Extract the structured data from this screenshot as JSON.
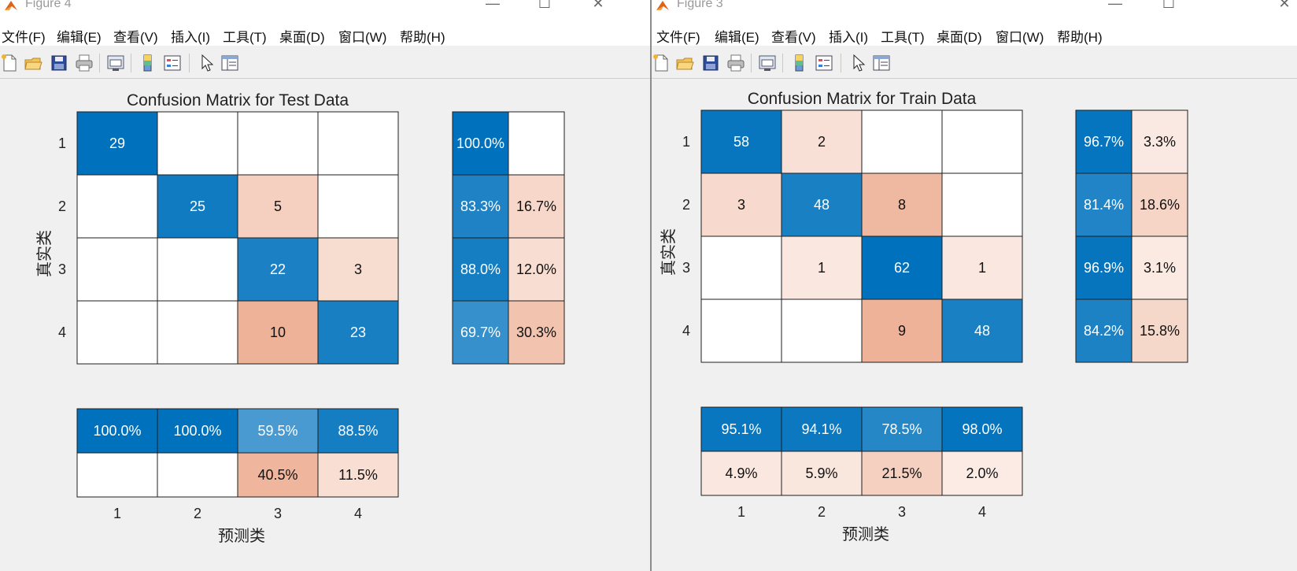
{
  "windows": [
    {
      "id": "win4",
      "title": "Figure 4",
      "menu": [
        "文件(F)",
        "编辑(E)",
        "查看(V)",
        "插入(I)",
        "工具(T)",
        "桌面(D)",
        "窗口(W)",
        "帮助(H)"
      ],
      "chart_data": {
        "type": "heatmap",
        "title": "Confusion Matrix for Test Data",
        "xlabel": "预测类",
        "ylabel": "真实类",
        "categories": [
          "1",
          "2",
          "3",
          "4"
        ],
        "matrix": [
          [
            29,
            0,
            0,
            0
          ],
          [
            0,
            25,
            5,
            0
          ],
          [
            0,
            0,
            22,
            3
          ],
          [
            0,
            0,
            10,
            23
          ]
        ],
        "row_summary": [
          [
            "100.0%",
            ""
          ],
          [
            "83.3%",
            "16.7%"
          ],
          [
            "88.0%",
            "12.0%"
          ],
          [
            "69.7%",
            "30.3%"
          ]
        ],
        "column_summary": [
          [
            "100.0%",
            "100.0%",
            "59.5%",
            "88.5%"
          ],
          [
            "",
            "",
            "40.5%",
            "11.5%"
          ]
        ]
      }
    },
    {
      "id": "win3",
      "title": "Figure 3",
      "menu": [
        "文件(F)",
        "编辑(E)",
        "查看(V)",
        "插入(I)",
        "工具(T)",
        "桌面(D)",
        "窗口(W)",
        "帮助(H)"
      ],
      "chart_data": {
        "type": "heatmap",
        "title": "Confusion Matrix for Train Data",
        "xlabel": "预测类",
        "ylabel": "真实类",
        "categories": [
          "1",
          "2",
          "3",
          "4"
        ],
        "matrix": [
          [
            58,
            2,
            0,
            0
          ],
          [
            3,
            48,
            8,
            0
          ],
          [
            0,
            1,
            62,
            1
          ],
          [
            0,
            0,
            9,
            48
          ]
        ],
        "row_summary": [
          [
            "96.7%",
            "3.3%"
          ],
          [
            "81.4%",
            "18.6%"
          ],
          [
            "96.9%",
            "3.1%"
          ],
          [
            "84.2%",
            "15.8%"
          ]
        ],
        "column_summary": [
          [
            "95.1%",
            "94.1%",
            "78.5%",
            "98.0%"
          ],
          [
            "4.9%",
            "5.9%",
            "21.5%",
            "2.0%"
          ]
        ]
      }
    }
  ],
  "colors": {
    "accent_blue": "#0072bd",
    "accent_orange": "#d95319",
    "background": "#f0f0f0"
  },
  "toolbar_icons": [
    "new-file-icon",
    "open-folder-icon",
    "save-icon",
    "print-icon",
    "link-figure-icon",
    "colorbar-icon",
    "legend-icon",
    "pointer-icon",
    "property-inspector-icon"
  ]
}
